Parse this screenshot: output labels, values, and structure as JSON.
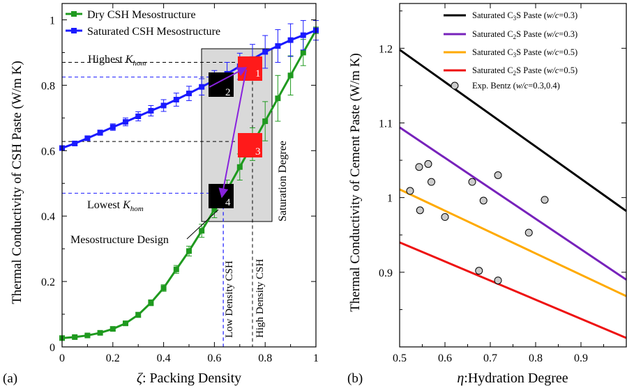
{
  "panel_a": {
    "label": "(a)",
    "xlabel_symbol": "ζ",
    "xlabel_text": ": Packing Density",
    "ylabel": "Thermal Conductivity of CSH Paste (W/m K)",
    "annotations": {
      "highest_prefix": "Highest ",
      "highest_K": "K",
      "highest_sub": "hom",
      "lowest_prefix": "Lowest ",
      "lowest_K": "K",
      "lowest_sub": "hom",
      "mesostructure_design": "Mesostructure Design",
      "saturation_degree": "Saturation Degree",
      "low_density": "Low Density CSH",
      "high_density": "High Density CSH",
      "box_labels": [
        "1",
        "2",
        "3",
        "4"
      ]
    }
  },
  "panel_b": {
    "label": "(b)",
    "xlabel_symbol": "η",
    "xlabel_text": ":Hydration Degree",
    "ylabel": "Thermal Conductivity of Cement Paste (W/m K)",
    "legend": {
      "s1": {
        "pre": "Saturated C",
        "sub": "3",
        "mid": "S Paste (",
        "it": "w/c",
        "post": "=0.3)"
      },
      "s2": {
        "pre": "Saturated C",
        "sub": "2",
        "mid": "S Paste (",
        "it": "w/c",
        "post": "=0.3)"
      },
      "s3": {
        "pre": "Saturated C",
        "sub": "3",
        "mid": "S Paste (",
        "it": "w/c",
        "post": "=0.5)"
      },
      "s4": {
        "pre": "Saturated C",
        "sub": "2",
        "mid": "S Paste (",
        "it": "w/c",
        "post": "=0.5)"
      },
      "exp": {
        "pre": "Exp. Bentz (",
        "it": "w/c",
        "post": "=0.3,0.4)"
      }
    }
  },
  "chart_data": [
    {
      "type": "line",
      "panel": "a",
      "xlabel": "ζ: Packing Density",
      "ylabel": "Thermal Conductivity of CSH Paste (W/m K)",
      "xlim": [
        0,
        1
      ],
      "ylim": [
        0,
        1.05
      ],
      "xticks": [
        0,
        0.2,
        0.4,
        0.6,
        0.8,
        1
      ],
      "xtick_labels": [
        "0",
        "0.2",
        "0.4",
        "0.6",
        "0.8",
        "1"
      ],
      "yticks": [
        0,
        0.2,
        0.4,
        0.6,
        0.8,
        1
      ],
      "ytick_labels": [
        "0",
        "0.2",
        "0.4",
        "0.6",
        "0.8",
        "1"
      ],
      "legend_position": "top-left",
      "x": [
        0,
        0.05,
        0.1,
        0.15,
        0.2,
        0.25,
        0.3,
        0.35,
        0.4,
        0.45,
        0.5,
        0.55,
        0.6,
        0.65,
        0.7,
        0.75,
        0.8,
        0.85,
        0.9,
        0.95,
        1.0
      ],
      "series": [
        {
          "name": "Dry CSH Mesostructure",
          "color": "#1f9a1f",
          "values": [
            0.027,
            0.03,
            0.035,
            0.043,
            0.055,
            0.072,
            0.098,
            0.135,
            0.18,
            0.237,
            0.293,
            0.355,
            0.42,
            0.48,
            0.55,
            0.62,
            0.69,
            0.76,
            0.83,
            0.9,
            0.968
          ],
          "errors": [
            0.003,
            0.004,
            0.004,
            0.005,
            0.006,
            0.007,
            0.008,
            0.009,
            0.01,
            0.012,
            0.015,
            0.02,
            0.025,
            0.03,
            0.04,
            0.05,
            0.06,
            0.07,
            0.06,
            0.04,
            0.01
          ]
        },
        {
          "name": "Saturated CSH Mesostructure",
          "color": "#1a1aff",
          "values": [
            0.608,
            0.622,
            0.638,
            0.655,
            0.672,
            0.688,
            0.705,
            0.722,
            0.738,
            0.756,
            0.775,
            0.795,
            0.815,
            0.835,
            0.858,
            0.88,
            0.902,
            0.92,
            0.938,
            0.953,
            0.968
          ],
          "errors": [
            0.005,
            0.006,
            0.007,
            0.008,
            0.01,
            0.012,
            0.014,
            0.016,
            0.018,
            0.02,
            0.022,
            0.025,
            0.03,
            0.035,
            0.04,
            0.045,
            0.05,
            0.05,
            0.05,
            0.045,
            0.03
          ]
        }
      ]
    },
    {
      "type": "line",
      "panel": "b",
      "xlabel": "η:Hydration Degree",
      "ylabel": "Thermal Conductivity of Cement Paste (W/m K)",
      "xlim": [
        0.5,
        1.0
      ],
      "ylim": [
        0.8,
        1.26
      ],
      "xticks": [
        0.5,
        0.6,
        0.7,
        0.8,
        0.9
      ],
      "xtick_labels": [
        "0.5",
        "0.6",
        "0.7",
        "0.8",
        "0.9"
      ],
      "yticks": [
        0.9,
        1.0,
        1.1,
        1.2
      ],
      "ytick_labels": [
        "0.9",
        "1",
        "1.1",
        "1.2"
      ],
      "legend_position": "top-right",
      "series": [
        {
          "name": "Saturated C3S Paste (w/c=0.3)",
          "color": "#000000",
          "x": [
            0.5,
            1.0
          ],
          "values": [
            1.198,
            0.982
          ]
        },
        {
          "name": "Saturated C2S Paste (w/c=0.3)",
          "color": "#7722bb",
          "x": [
            0.5,
            1.0
          ],
          "values": [
            1.094,
            0.89
          ]
        },
        {
          "name": "Saturated C3S Paste (w/c=0.5)",
          "color": "#ffaa00",
          "x": [
            0.5,
            1.0
          ],
          "values": [
            1.011,
            0.868
          ]
        },
        {
          "name": "Saturated C2S Paste (w/c=0.5)",
          "color": "#ee1111",
          "x": [
            0.5,
            1.0
          ],
          "values": [
            0.94,
            0.812
          ]
        }
      ],
      "scatter": {
        "name": "Exp. Bentz (w/c=0.3,0.4)",
        "points": [
          [
            0.523,
            1.009
          ],
          [
            0.543,
            1.041
          ],
          [
            0.563,
            1.045
          ],
          [
            0.57,
            1.021
          ],
          [
            0.545,
            0.983
          ],
          [
            0.6,
            0.974
          ],
          [
            0.66,
            1.021
          ],
          [
            0.717,
            1.03
          ],
          [
            0.685,
            0.996
          ],
          [
            0.675,
            0.902
          ],
          [
            0.717,
            0.889
          ],
          [
            0.785,
            0.953
          ],
          [
            0.82,
            0.997
          ]
        ]
      }
    }
  ]
}
